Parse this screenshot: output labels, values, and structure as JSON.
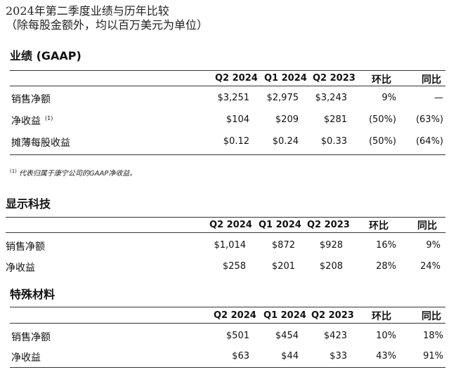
{
  "title": {
    "line1": "2024年第二季度业绩与历年比较",
    "line2": "（除每股金额外，均以百万美元为单位）"
  },
  "sections": [
    {
      "name": "业绩 (GAAP)",
      "headers": [
        "Q2 2024",
        "Q1 2024",
        "Q2 2023",
        "环比",
        "同比"
      ],
      "rows": [
        {
          "label": "销售净额",
          "values": [
            "$3,251",
            "$2,975",
            "$3,243",
            "9%",
            "—"
          ]
        },
        {
          "label": "净收益",
          "footnote": "(1)",
          "values": [
            "$104",
            "$209",
            "$281",
            "(50%)",
            "(63%)"
          ]
        },
        {
          "label": "摊薄每股收益",
          "values": [
            "$0.12",
            "$0.24",
            "$0.33",
            "(50%)",
            "(64%)"
          ]
        }
      ],
      "note_marker": "(1)",
      "note": "代表归属于康宁公司的GAAP净收益。"
    },
    {
      "name": "显示科技",
      "headers": [
        "Q2 2024",
        "Q1 2024",
        "Q2 2023",
        "环比",
        "同比"
      ],
      "rows": [
        {
          "label": "销售净额",
          "values": [
            "$1,014",
            "$872",
            "$928",
            "16%",
            "9%"
          ]
        },
        {
          "label": "净收益",
          "values": [
            "$258",
            "$201",
            "$208",
            "28%",
            "24%"
          ]
        }
      ]
    },
    {
      "name": "特殊材料",
      "headers": [
        "Q2 2024",
        "Q1 2024",
        "Q2 2023",
        "环比",
        "同比"
      ],
      "rows": [
        {
          "label": "销售净额",
          "values": [
            "$501",
            "$454",
            "$423",
            "10%",
            "18%"
          ]
        },
        {
          "label": "净收益",
          "values": [
            "$63",
            "$44",
            "$33",
            "43%",
            "91%"
          ]
        }
      ]
    }
  ]
}
